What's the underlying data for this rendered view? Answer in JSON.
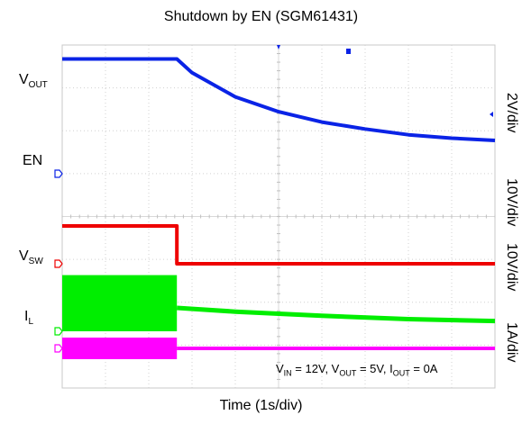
{
  "chart_data": {
    "type": "line",
    "title": "Shutdown by EN (SGM61431)",
    "xlabel": "Time (1s/div)",
    "conditions": {
      "vin": "12V",
      "vout": "5V",
      "iout": "0A"
    },
    "x_divisions": 10,
    "event_time_div": 2.65,
    "channels": [
      {
        "name": "VOUT",
        "main": "V",
        "sub": "OUT",
        "scale": "2V/div",
        "color": "#0a23e6",
        "points": [
          [
            0,
            5.0
          ],
          [
            2.65,
            5.0
          ],
          [
            3,
            4.4
          ],
          [
            4,
            3.35
          ],
          [
            5,
            2.7
          ],
          [
            6,
            2.25
          ],
          [
            7,
            1.95
          ],
          [
            8,
            1.7
          ],
          [
            9,
            1.55
          ],
          [
            10,
            1.45
          ]
        ]
      },
      {
        "name": "EN",
        "main": "EN",
        "sub": "",
        "scale": "10V/div",
        "color": "#ee0000",
        "points": [
          [
            0,
            12.0
          ],
          [
            2.65,
            12.0
          ],
          [
            2.65,
            0.0
          ],
          [
            10,
            0.0
          ]
        ]
      },
      {
        "name": "VSW",
        "main": "V",
        "sub": "SW",
        "scale": "10V/div",
        "color": "#00ee00",
        "switching": {
          "from": 0,
          "to": 2.65,
          "low": 0.0,
          "high": 12.0
        },
        "points": [
          [
            2.65,
            5.0
          ],
          [
            4,
            4.2
          ],
          [
            6,
            3.3
          ],
          [
            8,
            2.6
          ],
          [
            10,
            2.2
          ]
        ]
      },
      {
        "name": "IL",
        "main": "I",
        "sub": "L",
        "scale": "1A/div",
        "color": "#ff00ff",
        "switching": {
          "from": 0,
          "to": 2.65,
          "low": -0.3,
          "high": 0.3
        },
        "points": [
          [
            2.65,
            0.0
          ],
          [
            10,
            0.0
          ]
        ]
      }
    ]
  }
}
